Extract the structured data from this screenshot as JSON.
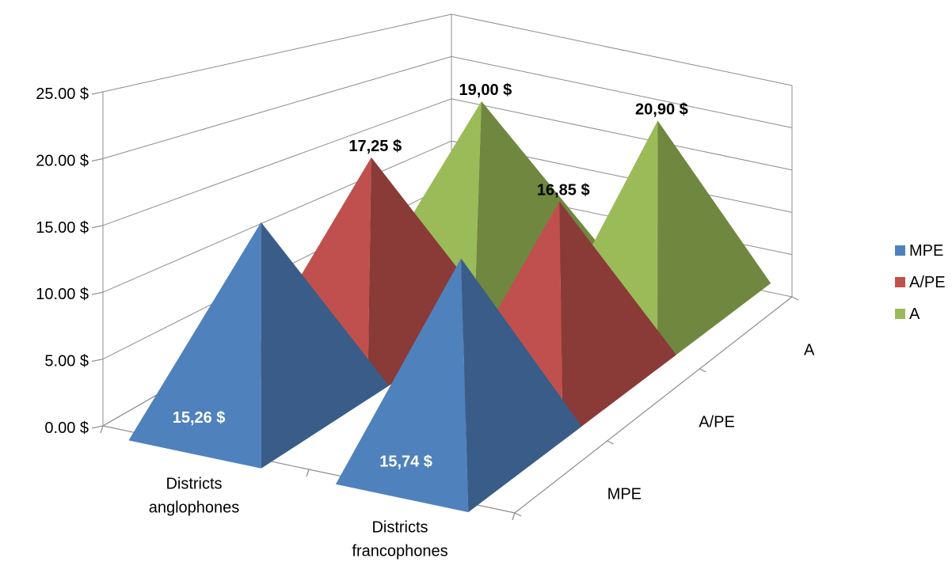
{
  "chart_data": {
    "type": "bar",
    "shape": "pyramid-3d",
    "ylim": [
      0,
      25
    ],
    "y_ticks": [
      "0.00 $",
      "5.00 $",
      "10.00 $",
      "15.00 $",
      "20.00 $",
      "25.00 $"
    ],
    "y_tick_values": [
      0,
      5,
      10,
      15,
      20,
      25
    ],
    "categories": [
      "Districts anglophones",
      "Districts francophones"
    ],
    "series": [
      {
        "name": "MPE",
        "color": "#4f81bd",
        "values": [
          15.26,
          15.74
        ],
        "labels": [
          "15,26 $",
          "15,74 $"
        ],
        "label_color": "#ffffff"
      },
      {
        "name": "A/PE",
        "color": "#c0504d",
        "values": [
          17.25,
          16.85
        ],
        "labels": [
          "17,25 $",
          "16,85 $"
        ],
        "label_color": "#000000"
      },
      {
        "name": "A",
        "color": "#9bbb59",
        "values": [
          19.0,
          20.9
        ],
        "labels": [
          "19,00 $",
          "20,90 $"
        ],
        "label_color": "#000000"
      }
    ],
    "depth_axis_labels": [
      "MPE",
      "A/PE",
      "A"
    ],
    "grid": true,
    "legend_position": "right"
  }
}
